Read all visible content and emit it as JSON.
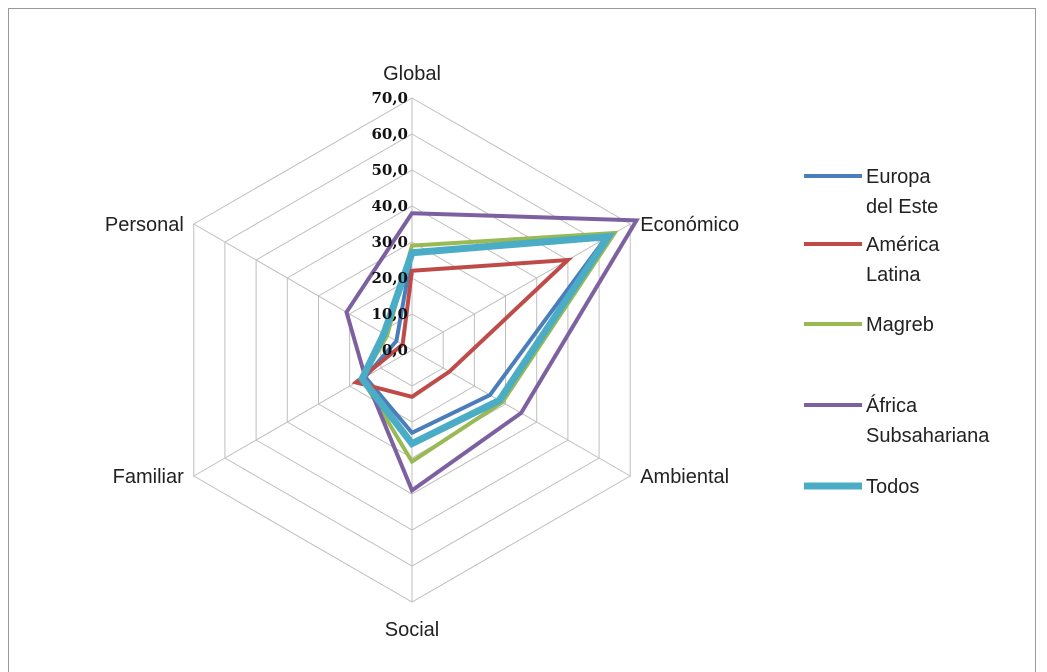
{
  "chart_data": {
    "type": "radar",
    "axes": [
      "Global",
      "Económico",
      "Ambiental",
      "Social",
      "Familiar",
      "Personal"
    ],
    "rlim": [
      0,
      70
    ],
    "ticks": [
      "0,0",
      "10,0",
      "20,0",
      "30,0",
      "40,0",
      "50,0",
      "60,0",
      "70,0"
    ],
    "grid": true,
    "legend_position": "right",
    "series": [
      {
        "name": "Europa del Este",
        "legend_lines": [
          "Europa",
          "del Este"
        ],
        "color": "#4a7ebb",
        "values": [
          27,
          62,
          25,
          23,
          15,
          5
        ]
      },
      {
        "name": "América Latina",
        "legend_lines": [
          "América",
          "Latina"
        ],
        "color": "#be4b48",
        "values": [
          22,
          50,
          12,
          13,
          18,
          3
        ]
      },
      {
        "name": "Magreb",
        "legend_lines": [
          "Magreb"
        ],
        "color": "#98b954",
        "values": [
          29,
          65,
          29,
          31,
          16,
          8
        ]
      },
      {
        "name": "África Subsahariana",
        "legend_lines": [
          "África",
          "Subsahariana"
        ],
        "color": "#7d60a0",
        "values": [
          38,
          72,
          35,
          39,
          15,
          21
        ]
      },
      {
        "name": "Todos",
        "legend_lines": [
          "Todos"
        ],
        "color": "#4bacc6",
        "values": [
          27,
          63,
          28,
          26,
          16,
          9
        ]
      }
    ]
  }
}
